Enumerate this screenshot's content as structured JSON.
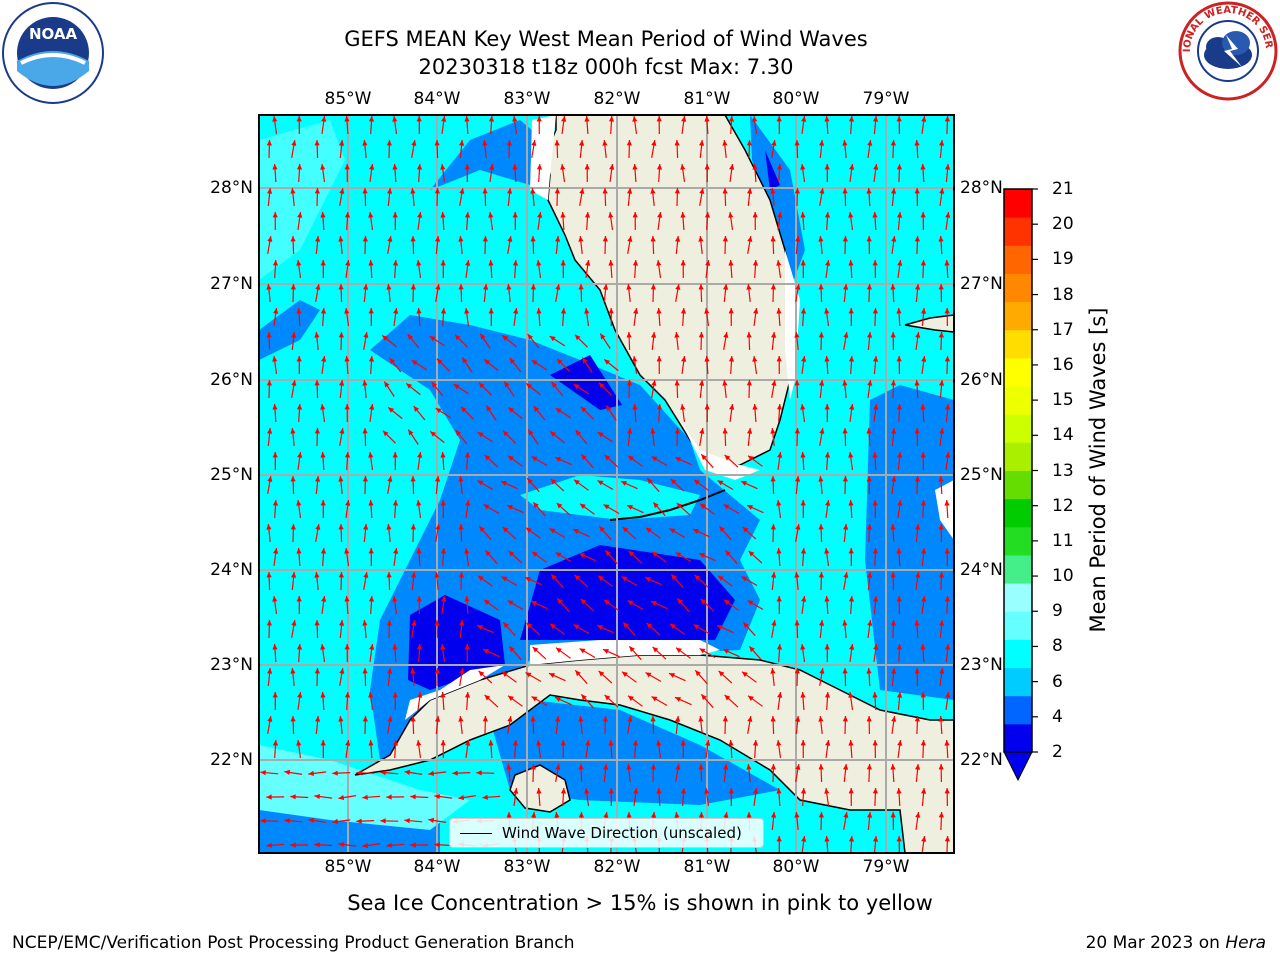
{
  "title": {
    "line1": "GEFS MEAN Key West Mean Period of Wind Waves",
    "line2": "20230318 t18z 000h fcst   Max: 7.30"
  },
  "axes": {
    "lon_labels": [
      "85°W",
      "84°W",
      "83°W",
      "82°W",
      "81°W",
      "80°W",
      "79°W"
    ],
    "lat_labels": [
      "28°N",
      "27°N",
      "26°N",
      "25°N",
      "24°N",
      "23°N",
      "22°N"
    ]
  },
  "colorbar": {
    "title": "Mean Period of Wind Waves [s]",
    "ticks": [
      "2",
      "4",
      "6",
      "8",
      "9",
      "10",
      "11",
      "12",
      "13",
      "14",
      "15",
      "16",
      "17",
      "18",
      "19",
      "20",
      "21"
    ],
    "colors": [
      "#0000ee",
      "#0066ff",
      "#00ccff",
      "#00ffff",
      "#66ffff",
      "#99ffff",
      "#44ee88",
      "#22dd22",
      "#00cc00",
      "#66dd00",
      "#aaee00",
      "#ccff00",
      "#eeff00",
      "#ffff00",
      "#ffdd00",
      "#ffaa00",
      "#ff8800",
      "#ff6600",
      "#ff3300",
      "#ff0000"
    ]
  },
  "legend": {
    "label": "Wind Wave Direction (unscaled)"
  },
  "map_colors": {
    "ocean_light": "#00ffff",
    "ocean_mid": "#0088ff",
    "ocean_dark": "#0000ee",
    "land": "#efefdf",
    "arrow": "#ff0000",
    "grid": "#aaaaaa"
  },
  "footnote": "Sea Ice Concentration > 15% is shown in pink to yellow",
  "credit": {
    "left": "NCEP/EMC/Verification Post Processing Product Generation Branch",
    "date": "20 Mar 2023 on ",
    "host": "Hera"
  },
  "logos": {
    "left": "NOAA",
    "right": "NATIONAL WEATHER SERVICE"
  }
}
